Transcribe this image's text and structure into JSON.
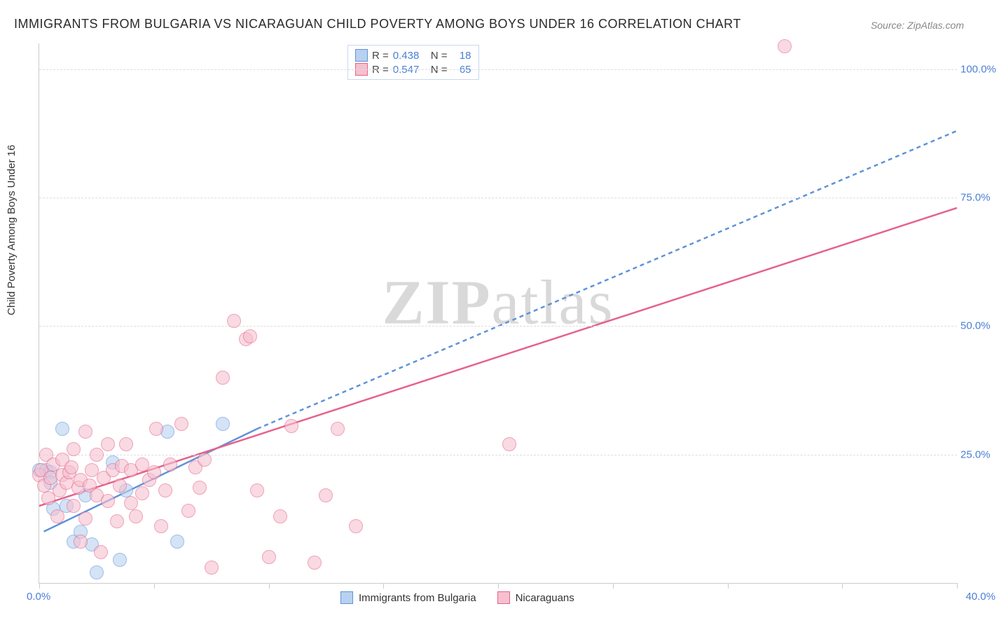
{
  "title": "IMMIGRANTS FROM BULGARIA VS NICARAGUAN CHILD POVERTY AMONG BOYS UNDER 16 CORRELATION CHART",
  "source_prefix": "Source: ",
  "source": "ZipAtlas.com",
  "ylabel": "Child Poverty Among Boys Under 16",
  "watermark_a": "ZIP",
  "watermark_b": "atlas",
  "chart": {
    "type": "scatter",
    "xlim": [
      0,
      40
    ],
    "ylim": [
      0,
      105
    ],
    "x_ticks_minor": [
      0,
      5,
      10,
      15,
      20,
      25,
      30,
      35,
      40
    ],
    "x_tick_labels": {
      "0": "0.0%",
      "40": "40.0%"
    },
    "y_gridlines": [
      25,
      50,
      75,
      100
    ],
    "y_tick_labels": {
      "25": "25.0%",
      "50": "50.0%",
      "75": "75.0%",
      "100": "100.0%"
    },
    "grid_color": "#dddddd",
    "axis_color": "#cccccc",
    "background_color": "#ffffff",
    "marker_radius": 9,
    "marker_opacity": 0.6
  },
  "series": [
    {
      "name": "Immigrants from Bulgaria",
      "color_fill": "#b8d1f0",
      "color_stroke": "#5f93d8",
      "R": "0.438",
      "N": "18",
      "regression": {
        "x1": 0.2,
        "y1": 10,
        "x2": 9.5,
        "y2": 30,
        "solid": true
      },
      "regression_ext": {
        "x1": 9.5,
        "y1": 30,
        "x2": 40,
        "y2": 88,
        "solid": false
      },
      "points": [
        [
          0.0,
          22
        ],
        [
          0.3,
          22
        ],
        [
          0.5,
          21.5
        ],
        [
          0.5,
          19.5
        ],
        [
          0.6,
          14.5
        ],
        [
          1.0,
          30
        ],
        [
          1.2,
          15
        ],
        [
          1.5,
          8
        ],
        [
          1.8,
          10
        ],
        [
          2.0,
          17
        ],
        [
          2.3,
          7.5
        ],
        [
          2.5,
          2
        ],
        [
          3.2,
          23.5
        ],
        [
          3.5,
          4.5
        ],
        [
          3.8,
          18
        ],
        [
          5.6,
          29.5
        ],
        [
          6.0,
          8
        ],
        [
          8.0,
          31
        ]
      ]
    },
    {
      "name": "Nicaraguans",
      "color_fill": "#f6c0cf",
      "color_stroke": "#e5638b",
      "R": "0.547",
      "N": "65",
      "regression": {
        "x1": 0.0,
        "y1": 15,
        "x2": 40,
        "y2": 73,
        "solid": true
      },
      "points": [
        [
          0.0,
          21
        ],
        [
          0.1,
          22
        ],
        [
          0.2,
          19
        ],
        [
          0.3,
          25
        ],
        [
          0.4,
          16.5
        ],
        [
          0.5,
          20.5
        ],
        [
          0.6,
          23
        ],
        [
          0.8,
          13
        ],
        [
          0.9,
          18
        ],
        [
          1.0,
          21
        ],
        [
          1.0,
          24
        ],
        [
          1.2,
          19.5
        ],
        [
          1.3,
          21.5
        ],
        [
          1.4,
          22.5
        ],
        [
          1.5,
          15
        ],
        [
          1.5,
          26
        ],
        [
          1.7,
          18.5
        ],
        [
          1.8,
          20
        ],
        [
          1.8,
          8
        ],
        [
          2.0,
          29.5
        ],
        [
          2.0,
          12.5
        ],
        [
          2.2,
          19
        ],
        [
          2.3,
          22
        ],
        [
          2.5,
          17
        ],
        [
          2.5,
          25
        ],
        [
          2.7,
          6
        ],
        [
          2.8,
          20.5
        ],
        [
          3.0,
          16
        ],
        [
          3.0,
          27
        ],
        [
          3.2,
          22
        ],
        [
          3.4,
          12
        ],
        [
          3.5,
          19
        ],
        [
          3.6,
          22.8
        ],
        [
          3.8,
          27
        ],
        [
          4.0,
          15.5
        ],
        [
          4.0,
          22
        ],
        [
          4.2,
          13
        ],
        [
          4.5,
          23
        ],
        [
          4.5,
          17.5
        ],
        [
          4.8,
          20
        ],
        [
          5.0,
          21.5
        ],
        [
          5.1,
          30
        ],
        [
          5.3,
          11
        ],
        [
          5.5,
          18
        ],
        [
          5.7,
          23
        ],
        [
          6.2,
          31
        ],
        [
          6.5,
          14
        ],
        [
          6.8,
          22.5
        ],
        [
          7.0,
          18.5
        ],
        [
          7.2,
          24
        ],
        [
          7.5,
          3
        ],
        [
          8.0,
          40
        ],
        [
          8.5,
          51
        ],
        [
          9.0,
          47.5
        ],
        [
          9.2,
          48
        ],
        [
          9.5,
          18
        ],
        [
          10.0,
          5
        ],
        [
          10.5,
          13
        ],
        [
          11.0,
          30.5
        ],
        [
          12.0,
          4
        ],
        [
          12.5,
          17
        ],
        [
          13.0,
          30
        ],
        [
          13.8,
          11
        ],
        [
          20.5,
          27
        ],
        [
          32.5,
          104.5
        ]
      ]
    }
  ],
  "legend_labels": {
    "R": "R =",
    "N": "N ="
  }
}
